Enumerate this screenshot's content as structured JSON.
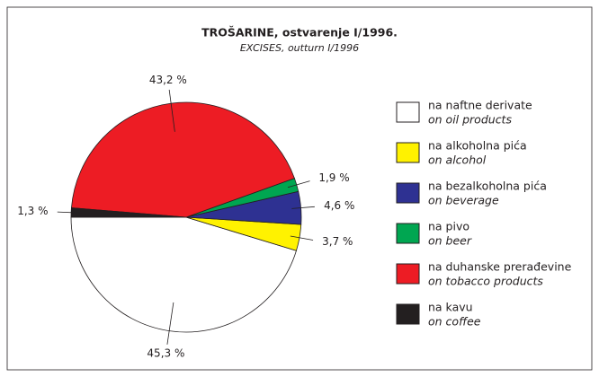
{
  "chart_data": {
    "type": "pie",
    "title": "TROŠARINE, ostvarenje I/1996.",
    "subtitle": "EXCISES, outturn I/1996",
    "categories": [
      "na naftne derivate",
      "na alkoholna pića",
      "na bezalkoholna pića",
      "na pivo",
      "na duhanske prerađevine",
      "na kavu"
    ],
    "categories_en": [
      "on oil products",
      "on alcohol",
      "on beverage",
      "on beer",
      "on tobacco products",
      "on coffee"
    ],
    "values": [
      45.3,
      3.7,
      4.6,
      1.9,
      43.2,
      1.3
    ],
    "value_labels": [
      "45,3 %",
      "3,7 %",
      "4,6 %",
      "1,9 %",
      "43,2 %",
      "1,3 %"
    ],
    "colors": [
      "#ffffff",
      "#fff200",
      "#2e3192",
      "#00a651",
      "#ed1c24",
      "#231f20"
    ]
  }
}
